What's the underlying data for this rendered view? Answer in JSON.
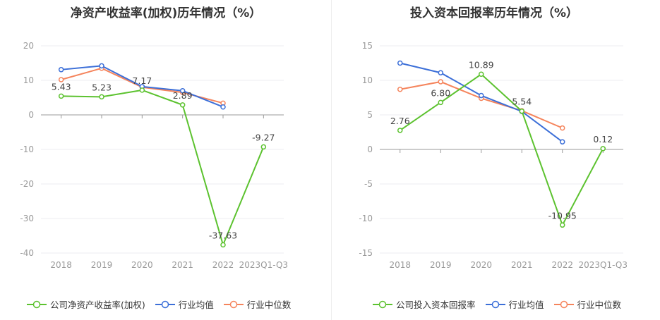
{
  "charts": [
    {
      "title": "净资产收益率(加权)历年情况（%）"
    },
    {
      "title": "投入资本回报率历年情况（%）"
    }
  ],
  "chart_data": [
    {
      "type": "line",
      "title": "净资产收益率(加权)历年情况（%）",
      "categories": [
        "2018",
        "2019",
        "2020",
        "2021",
        "2022",
        "2023Q1-Q3"
      ],
      "ylim": [
        -40,
        20
      ],
      "yticks": [
        20,
        10,
        0,
        -10,
        -20,
        -30,
        -40
      ],
      "grid": true,
      "legend": "bottom",
      "series": [
        {
          "name": "公司净资产收益率(加权)",
          "color": "#5cc22f",
          "values": [
            5.43,
            5.23,
            7.17,
            2.89,
            -37.63,
            -9.27
          ],
          "labels": [
            "5.43",
            "5.23",
            "7.17",
            "2.89",
            "-37.63",
            "-9.27"
          ]
        },
        {
          "name": "行业均值",
          "color": "#3c6fd8",
          "values": [
            13.1,
            14.2,
            8.2,
            7.0,
            2.3,
            null
          ]
        },
        {
          "name": "行业中位数",
          "color": "#f5845c",
          "values": [
            10.2,
            13.5,
            8.0,
            6.5,
            3.4,
            null
          ]
        }
      ]
    },
    {
      "type": "line",
      "title": "投入资本回报率历年情况（%）",
      "categories": [
        "2018",
        "2019",
        "2020",
        "2021",
        "2022",
        "2023Q1-Q3"
      ],
      "ylim": [
        -15,
        15
      ],
      "yticks": [
        15,
        10,
        5,
        0,
        -5,
        -10,
        -15
      ],
      "grid": true,
      "legend": "bottom",
      "series": [
        {
          "name": "公司投入资本回报率",
          "color": "#5cc22f",
          "values": [
            2.76,
            6.8,
            10.89,
            5.54,
            -10.95,
            0.12
          ],
          "labels": [
            "2.76",
            "6.80",
            "10.89",
            "5.54",
            "-10.95",
            "0.12"
          ]
        },
        {
          "name": "行业均值",
          "color": "#3c6fd8",
          "values": [
            12.5,
            11.1,
            7.8,
            5.5,
            1.1,
            null
          ]
        },
        {
          "name": "行业中位数",
          "color": "#f5845c",
          "values": [
            8.7,
            9.8,
            7.4,
            5.6,
            3.1,
            null
          ]
        }
      ]
    }
  ]
}
